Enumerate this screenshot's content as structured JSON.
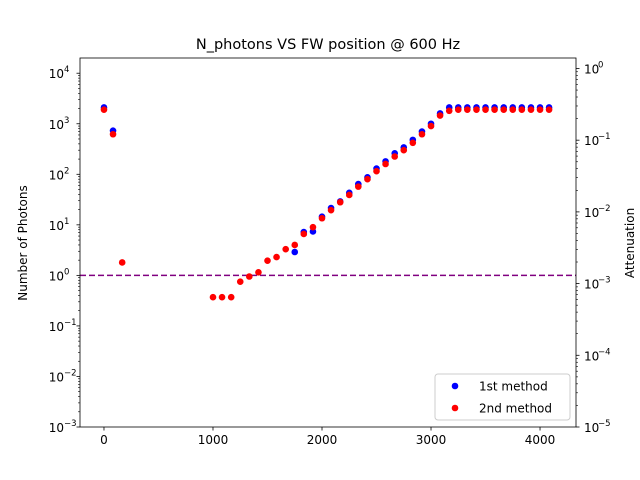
{
  "chart_data": {
    "type": "scatter",
    "title": "N_photons VS FW position @ 600 Hz",
    "xlabel": "",
    "ylabel": "Number of Photons",
    "y2label": "Attenuation",
    "xlim": [
      -220,
      4330
    ],
    "ylim": [
      0.001,
      20000
    ],
    "y2lim": [
      1e-05,
      1.4
    ],
    "yscale": "log",
    "y2scale": "log",
    "x_ticks": [
      0,
      1000,
      2000,
      3000,
      4000
    ],
    "x_tick_labels": [
      "0",
      "1000",
      "2000",
      "3000",
      "4000"
    ],
    "y_ticks": [
      0.001,
      0.01,
      0.1,
      1,
      10,
      100,
      1000,
      10000
    ],
    "y_tick_labels": [
      "10",
      "10",
      "10",
      "10",
      "10",
      "10",
      "10",
      "10"
    ],
    "y_tick_exponents": [
      "−3",
      "−2",
      "−1",
      "0",
      "1",
      "2",
      "3",
      "4"
    ],
    "y2_ticks": [
      1e-05,
      0.0001,
      0.001,
      0.01,
      0.1,
      1
    ],
    "y2_tick_labels": [
      "10",
      "10",
      "10",
      "10",
      "10",
      "10"
    ],
    "y2_tick_exponents": [
      "−5",
      "−4",
      "−3",
      "−2",
      "−1",
      "0"
    ],
    "hline": {
      "y": 1,
      "color": "#800080",
      "style": "dashed"
    },
    "legend_position": "lower-right",
    "grid": false,
    "series": [
      {
        "name": "1st method",
        "color": "#0000ff",
        "x": [
          0,
          83,
          1750,
          1833,
          1917,
          2000,
          2083,
          2167,
          2250,
          2333,
          2417,
          2500,
          2583,
          2667,
          2750,
          2833,
          2917,
          3000,
          3083,
          3167,
          3250,
          3333,
          3417,
          3500,
          3583,
          3667,
          3750,
          3833,
          3917,
          4000,
          4083
        ],
        "y": [
          2100,
          730,
          2.9,
          7.2,
          7.4,
          14.5,
          21.5,
          29,
          43,
          64,
          87,
          130,
          180,
          260,
          340,
          480,
          700,
          1000,
          1600,
          2100,
          2100,
          2100,
          2100,
          2100,
          2100,
          2100,
          2100,
          2100,
          2100,
          2100,
          2100
        ]
      },
      {
        "name": "2nd method",
        "color": "#ff0000",
        "x": [
          0,
          83,
          167,
          1000,
          1083,
          1167,
          1250,
          1333,
          1417,
          1500,
          1583,
          1667,
          1750,
          1833,
          1917,
          2000,
          2083,
          2167,
          2250,
          2333,
          2417,
          2500,
          2583,
          2667,
          2750,
          2833,
          2917,
          3000,
          3083,
          3167,
          3250,
          3333,
          3417,
          3500,
          3583,
          3667,
          3750,
          3833,
          3917,
          4000,
          4083
        ],
        "y": [
          1900,
          620,
          1.8,
          0.37,
          0.37,
          0.37,
          0.75,
          0.95,
          1.15,
          1.95,
          2.3,
          3.3,
          4.0,
          6.6,
          9.0,
          13.5,
          19.5,
          28,
          39,
          57,
          80,
          115,
          160,
          225,
          300,
          420,
          620,
          900,
          1450,
          1800,
          1900,
          1900,
          1900,
          1900,
          1900,
          1900,
          1900,
          1900,
          1900,
          1900,
          1900
        ]
      }
    ]
  }
}
